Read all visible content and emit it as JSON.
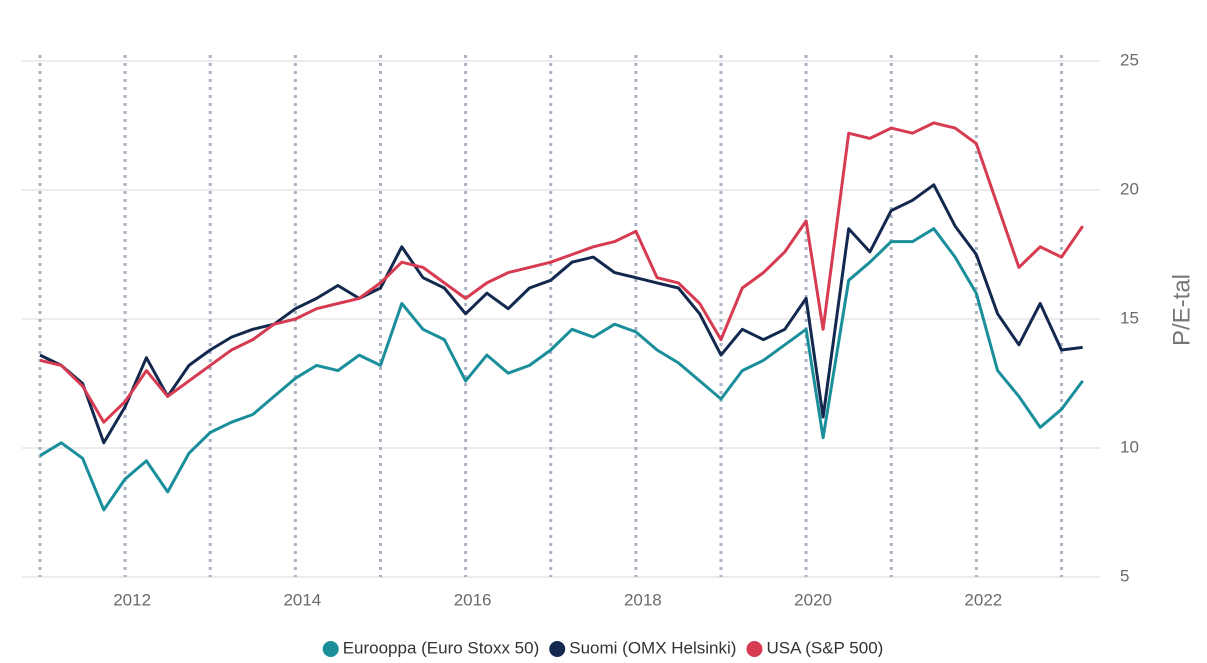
{
  "chart_data": {
    "type": "line",
    "y_label": "P/E-tal",
    "x": [
      2011,
      2011.25,
      2011.5,
      2011.75,
      2012,
      2012.25,
      2012.5,
      2012.75,
      2013,
      2013.25,
      2013.5,
      2013.75,
      2014,
      2014.25,
      2014.5,
      2014.75,
      2015,
      2015.25,
      2015.5,
      2015.75,
      2016,
      2016.25,
      2016.5,
      2016.75,
      2017,
      2017.25,
      2017.5,
      2017.75,
      2018,
      2018.25,
      2018.5,
      2018.75,
      2019,
      2019.25,
      2019.5,
      2019.75,
      2020,
      2020.2,
      2020.5,
      2020.75,
      2021,
      2021.25,
      2021.5,
      2021.75,
      2022,
      2022.25,
      2022.5,
      2022.75,
      2023,
      2023.25
    ],
    "series": [
      {
        "name": "Eurooppa (Euro Stoxx 50)",
        "color": "#1a8f9b",
        "values": [
          9.7,
          10.2,
          9.6,
          7.6,
          8.8,
          9.5,
          8.3,
          9.8,
          10.6,
          11.0,
          11.3,
          12.0,
          12.7,
          13.2,
          13.0,
          13.6,
          13.2,
          15.6,
          14.6,
          14.2,
          12.6,
          13.6,
          12.9,
          13.2,
          13.8,
          14.6,
          14.3,
          14.8,
          14.5,
          13.8,
          13.3,
          12.6,
          11.9,
          13.0,
          13.4,
          14.0,
          14.6,
          10.4,
          16.5,
          17.2,
          18.0,
          18.0,
          18.5,
          17.4,
          16.0,
          13.0,
          12.0,
          10.8,
          11.5,
          12.6
        ]
      },
      {
        "name": "Suomi (OMX Helsinki)",
        "color": "#13284f",
        "values": [
          13.6,
          13.2,
          12.5,
          10.2,
          11.6,
          13.5,
          12.0,
          13.2,
          13.8,
          14.3,
          14.6,
          14.8,
          15.4,
          15.8,
          16.3,
          15.8,
          16.2,
          17.8,
          16.6,
          16.2,
          15.2,
          16.0,
          15.4,
          16.2,
          16.5,
          17.2,
          17.4,
          16.8,
          16.6,
          16.4,
          16.2,
          15.2,
          13.6,
          14.6,
          14.2,
          14.6,
          15.8,
          11.2,
          18.5,
          17.6,
          19.2,
          19.6,
          20.2,
          18.6,
          17.5,
          15.2,
          14.0,
          15.6,
          13.8,
          13.9
        ]
      },
      {
        "name": "USA (S&P 500)",
        "color": "#d63b52",
        "values": [
          13.4,
          13.2,
          12.4,
          11.0,
          11.8,
          13.0,
          12.0,
          12.6,
          13.2,
          13.8,
          14.2,
          14.8,
          15.0,
          15.4,
          15.6,
          15.8,
          16.4,
          17.2,
          17.0,
          16.4,
          15.8,
          16.4,
          16.8,
          17.0,
          17.2,
          17.5,
          17.8,
          18.0,
          18.4,
          16.6,
          16.4,
          15.6,
          14.2,
          16.2,
          16.8,
          17.6,
          18.8,
          14.6,
          22.2,
          22.0,
          22.4,
          22.2,
          22.6,
          22.4,
          21.8,
          19.4,
          17.0,
          17.8,
          17.4,
          18.6
        ]
      }
    ],
    "xlim": [
      2011,
      2023.3
    ],
    "xticks": [
      2012,
      2014,
      2016,
      2018,
      2020,
      2022
    ],
    "x_gridlines": [
      2011,
      2012,
      2013,
      2014,
      2015,
      2016,
      2017,
      2018,
      2019,
      2020,
      2021,
      2022,
      2023
    ],
    "ylim": [
      5,
      25
    ],
    "yticks": [
      5,
      10,
      15,
      20,
      25
    ],
    "grid": true,
    "legend": "bottom"
  }
}
